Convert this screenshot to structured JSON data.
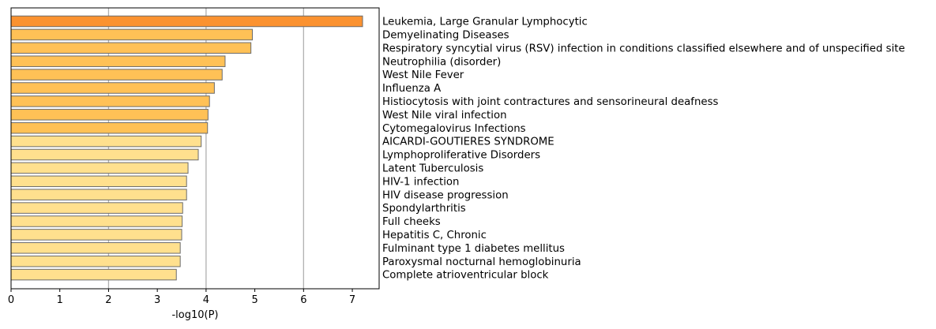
{
  "chart_data": {
    "type": "bar",
    "orientation": "horizontal",
    "xlabel": "-log10(P)",
    "xlim": [
      0,
      7.55
    ],
    "xticks": [
      "0",
      "1",
      "2",
      "3",
      "4",
      "5",
      "6",
      "7"
    ],
    "grid": "vertical, at x = 2, 4, 6",
    "categories": [
      "Leukemia, Large Granular Lymphocytic",
      "Demyelinating Diseases",
      "Respiratory syncytial virus (RSV) infection in conditions classified elsewhere and of unspecified site",
      "Neutrophilia (disorder)",
      "West Nile Fever",
      "Influenza A",
      "Histiocytosis with joint contractures and sensorineural deafness",
      "West Nile viral infection",
      "Cytomegalovirus Infections",
      "AICARDI-GOUTIERES SYNDROME",
      "Lymphoproliferative Disorders",
      "Latent Tuberculosis",
      "HIV-1 infection",
      "HIV disease progression",
      "Spondylarthritis",
      "Full cheeks",
      "Hepatitis C, Chronic",
      "Fulminant type 1 diabetes mellitus",
      "Paroxysmal nocturnal hemoglobinuria",
      "Complete atrioventricular block"
    ],
    "values": [
      7.21,
      4.95,
      4.92,
      4.39,
      4.33,
      4.17,
      4.07,
      4.04,
      4.03,
      3.9,
      3.84,
      3.63,
      3.6,
      3.6,
      3.52,
      3.51,
      3.5,
      3.47,
      3.47,
      3.39
    ],
    "bar_colors": [
      "#fb9230",
      "#ffc156",
      "#ffc156",
      "#ffc156",
      "#ffc156",
      "#ffc156",
      "#ffc156",
      "#ffc156",
      "#ffc156",
      "#ffe08e",
      "#ffe08e",
      "#ffe08e",
      "#ffe08e",
      "#ffe08e",
      "#ffe08e",
      "#ffe08e",
      "#ffe08e",
      "#ffe08e",
      "#ffe08e",
      "#ffe08e"
    ],
    "bar_edge_color": "#6b6b6b",
    "grid_color": "#b0b0b0"
  }
}
